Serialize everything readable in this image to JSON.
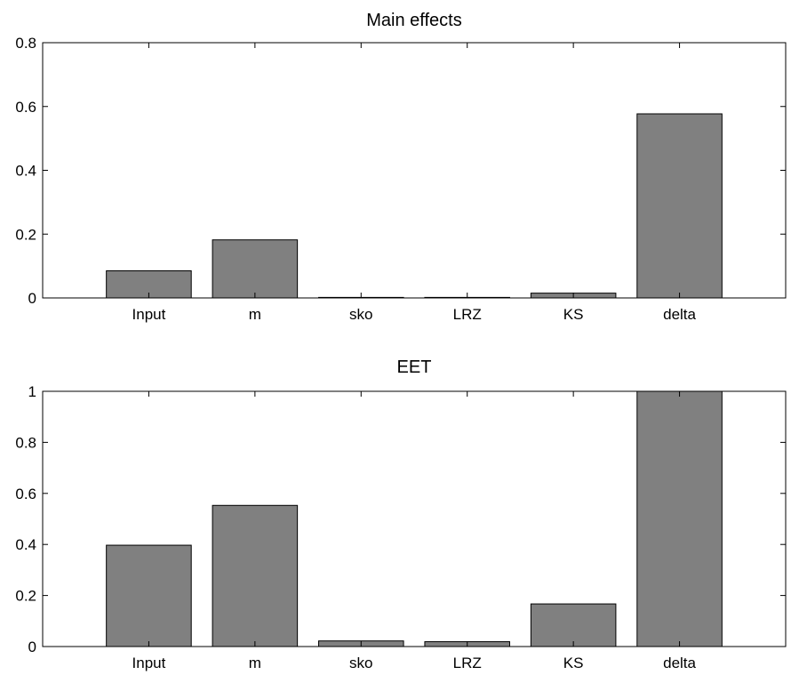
{
  "chart_data": [
    {
      "type": "bar",
      "title": "Main effects",
      "categories": [
        "Input",
        "m",
        "sko",
        "LRZ",
        "KS",
        "delta"
      ],
      "values": [
        0.085,
        0.182,
        0.001,
        0.001,
        0.015,
        0.577
      ],
      "ylim": [
        0,
        0.8
      ],
      "yticks": [
        0,
        0.2,
        0.4,
        0.6,
        0.8
      ],
      "ytick_labels": [
        "0",
        "0.2",
        "0.4",
        "0.6",
        "0.8"
      ],
      "xlabel": "",
      "ylabel": "",
      "bar_color": "#808080",
      "grid": false
    },
    {
      "type": "bar",
      "title": "EET",
      "categories": [
        "Input",
        "m",
        "sko",
        "LRZ",
        "KS",
        "delta"
      ],
      "values": [
        0.397,
        0.553,
        0.022,
        0.019,
        0.167,
        1.0
      ],
      "ylim": [
        0,
        1
      ],
      "yticks": [
        0,
        0.2,
        0.4,
        0.6,
        0.8,
        1
      ],
      "ytick_labels": [
        "0",
        "0.2",
        "0.4",
        "0.6",
        "0.8",
        "1"
      ],
      "xlabel": "",
      "ylabel": "",
      "bar_color": "#808080",
      "grid": false
    }
  ]
}
